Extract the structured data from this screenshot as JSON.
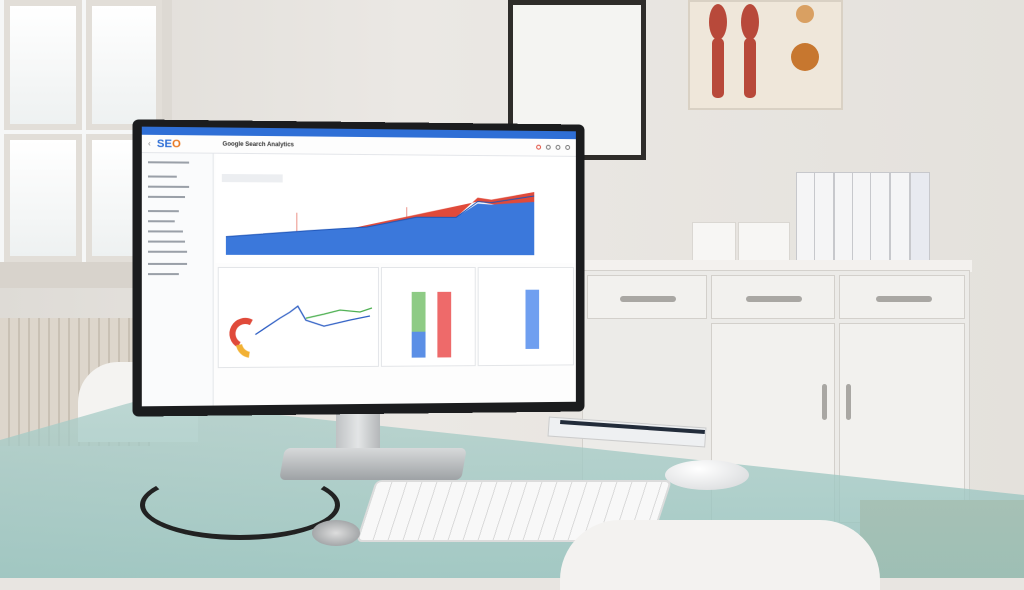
{
  "screen": {
    "logo_prefix": "SE",
    "logo_suffix": "O",
    "title": "Google Search Analytics"
  },
  "colors": {
    "accent_blue": "#2f6fd6",
    "accent_red": "#e04a3a",
    "logo_orange": "#e8761e",
    "desk_glass": "#a9cdc8"
  }
}
